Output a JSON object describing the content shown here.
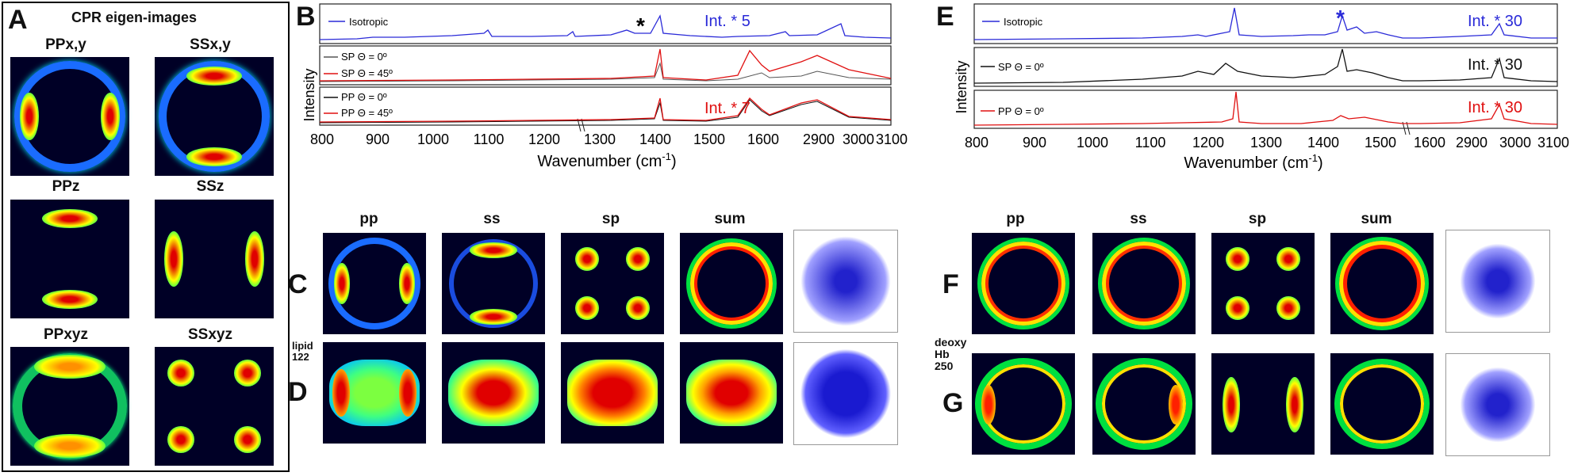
{
  "panel_a": {
    "letter": "A",
    "title": "CPR eigen-images",
    "labels": [
      "PPx,y",
      "SSx,y",
      "PPz",
      "SSz",
      "PPxyz",
      "SSxyz"
    ]
  },
  "panel_b": {
    "letter": "B",
    "ylabel": "Intensity",
    "xlabel": "Wavenumber (cm",
    "xlabel_sup": "-1",
    "xlabel_end": ")",
    "ticks": [
      "800",
      "900",
      "1000",
      "1100",
      "1200",
      "1300",
      "1400",
      "1500",
      "1600",
      "2900",
      "3000",
      "3100"
    ],
    "sub1": {
      "legend": [
        "Isotropic"
      ],
      "note": "Int. * 5",
      "star": "*"
    },
    "sub2": {
      "legend": [
        "SP Θ = 0º",
        "SP Θ = 45º"
      ]
    },
    "sub3": {
      "legend": [
        "PP Θ = 0º",
        "PP Θ = 45º"
      ],
      "note": "Int. * 7"
    }
  },
  "panel_e": {
    "letter": "E",
    "ylabel": "Intensity",
    "xlabel": "Wavenumber (cm",
    "xlabel_sup": "-1",
    "xlabel_end": ")",
    "ticks": [
      "800",
      "900",
      "1000",
      "1100",
      "1200",
      "1300",
      "1400",
      "1500",
      "1600",
      "2900",
      "3000",
      "3100"
    ],
    "sub1": {
      "legend": [
        "Isotropic"
      ],
      "note": "Int. * 30",
      "star": "*"
    },
    "sub2": {
      "legend": [
        "SP Θ = 0º"
      ],
      "note": "Int. * 30"
    },
    "sub3": {
      "legend": [
        "PP Θ = 0º"
      ],
      "note": "Int. * 30"
    }
  },
  "grid_left": {
    "headers": [
      "pp",
      "ss",
      "sp",
      "sum"
    ],
    "row_letters": [
      "C",
      "D"
    ],
    "side_label": [
      "lipid",
      "122"
    ]
  },
  "grid_right": {
    "headers": [
      "pp",
      "ss",
      "sp",
      "sum"
    ],
    "row_letters": [
      "F",
      "G"
    ],
    "side_label": [
      "deoxy",
      "Hb",
      "250"
    ]
  },
  "colors": {
    "blue": "#2a2ad8",
    "red": "#e01010",
    "black": "#111111",
    "jet_dark": "#000026"
  }
}
